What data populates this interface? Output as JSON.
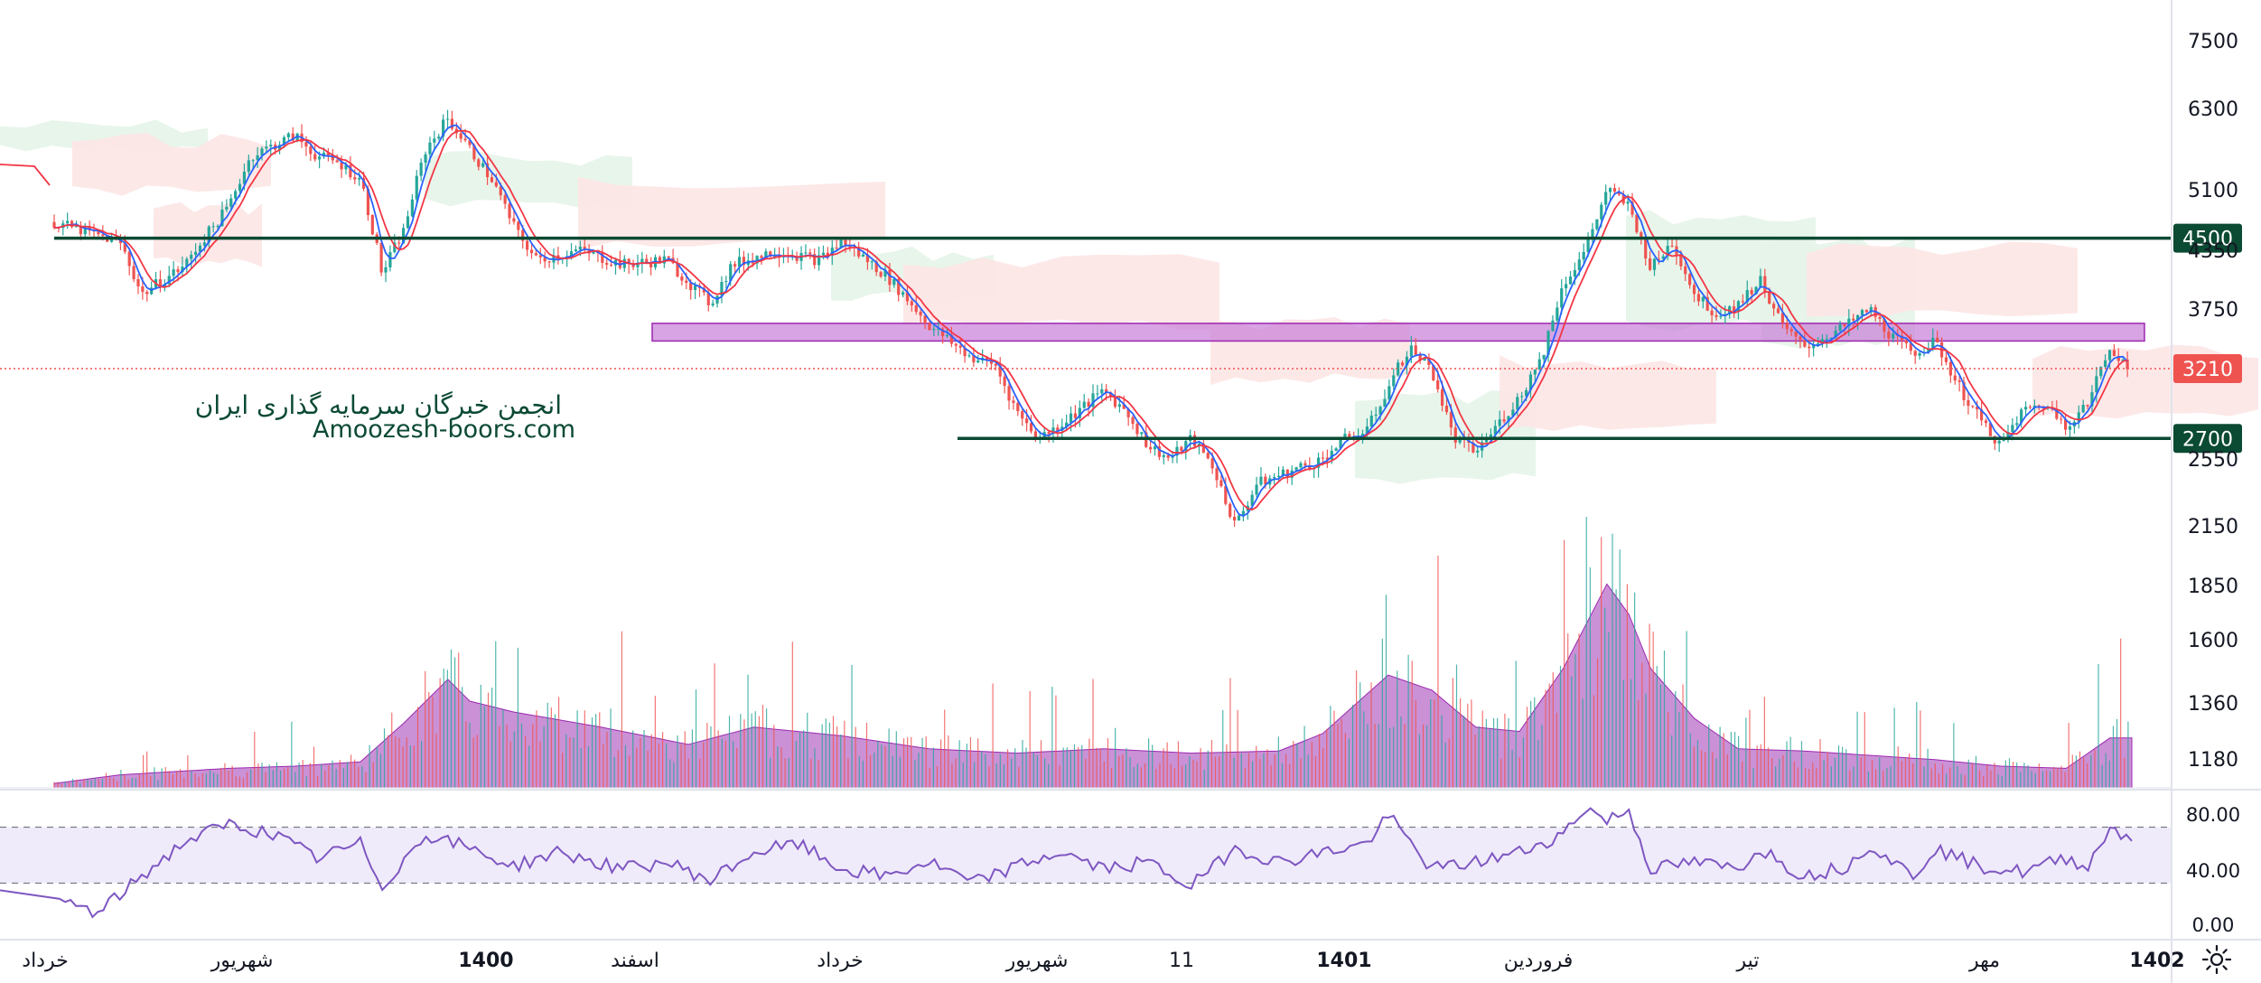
{
  "watermark": {
    "line1": "انجمن خبرگان سرمایه گذاری ایران",
    "line2": "Amoozesh-boors.com"
  },
  "colors": {
    "up": "#26a69a",
    "down": "#ef5350",
    "ma_fast": "#2962ff",
    "ma_slow": "#f23645",
    "level_line": "#0b4a33",
    "zone": "#c77dd7",
    "volume_area": "#b86cc8",
    "rsi_line": "#7e57c2",
    "rsi_band": "#f0ebfa",
    "cloud_green": "#e6f4e9",
    "cloud_red": "#fde5e5"
  },
  "chart_data": [
    {
      "type": "candlestick",
      "price_axis_ticks": [
        "7500",
        "6300",
        "5100",
        "4350",
        "3750",
        "3210",
        "2550",
        "2150",
        "1850",
        "1600",
        "1360",
        "1180"
      ],
      "x_axis_labels": [
        "خرداد",
        "شهریور",
        "1400",
        "اسفند",
        "خرداد",
        "شهریور",
        "11",
        "1401",
        "فروردین",
        "تیر",
        "مهر",
        "1402"
      ],
      "last_price": 3210,
      "last_price_label": "3210",
      "horizontal_levels": [
        {
          "value": 4500,
          "label": "4500"
        },
        {
          "value": 2700,
          "label": "2700"
        }
      ],
      "resistance_zone": [
        3460,
        3620
      ],
      "price_path": [
        [
          0,
          4700
        ],
        [
          3,
          4450
        ],
        [
          4,
          3900
        ],
        [
          6,
          4200
        ],
        [
          8,
          4900
        ],
        [
          9,
          5600
        ],
        [
          11,
          5900
        ],
        [
          12,
          5600
        ],
        [
          13,
          5500
        ],
        [
          14,
          5250
        ],
        [
          15,
          4100
        ],
        [
          16,
          4600
        ],
        [
          17,
          5700
        ],
        [
          18,
          6150
        ],
        [
          19,
          5700
        ],
        [
          20,
          5250
        ],
        [
          21,
          4650
        ],
        [
          22,
          4250
        ],
        [
          24,
          4350
        ],
        [
          26,
          4200
        ],
        [
          28,
          4250
        ],
        [
          30,
          3800
        ],
        [
          31,
          4200
        ],
        [
          33,
          4350
        ],
        [
          35,
          4250
        ],
        [
          36,
          4450
        ],
        [
          38,
          4100
        ],
        [
          40,
          3600
        ],
        [
          42,
          3300
        ],
        [
          43,
          3250
        ],
        [
          44,
          2900
        ],
        [
          45,
          2700
        ],
        [
          46,
          2800
        ],
        [
          48,
          3050
        ],
        [
          49,
          2900
        ],
        [
          50,
          2650
        ],
        [
          51,
          2550
        ],
        [
          52,
          2700
        ],
        [
          53,
          2500
        ],
        [
          54,
          2150
        ],
        [
          55,
          2400
        ],
        [
          56,
          2450
        ],
        [
          58,
          2550
        ],
        [
          59,
          2700
        ],
        [
          60,
          2750
        ],
        [
          62,
          3400
        ],
        [
          63,
          3200
        ],
        [
          64,
          2700
        ],
        [
          65,
          2600
        ],
        [
          66,
          2800
        ],
        [
          67,
          3000
        ],
        [
          68,
          3300
        ],
        [
          69,
          4000
        ],
        [
          70,
          4350
        ],
        [
          71,
          5100
        ],
        [
          72,
          4900
        ],
        [
          73,
          4150
        ],
        [
          74,
          4450
        ],
        [
          75,
          3900
        ],
        [
          76,
          3700
        ],
        [
          77,
          3800
        ],
        [
          78,
          4050
        ],
        [
          79,
          3600
        ],
        [
          80,
          3400
        ],
        [
          82,
          3600
        ],
        [
          83,
          3750
        ],
        [
          84,
          3500
        ],
        [
          85,
          3350
        ],
        [
          86,
          3450
        ],
        [
          87,
          3100
        ],
        [
          88,
          2850
        ],
        [
          89,
          2650
        ],
        [
          90,
          2900
        ],
        [
          91,
          2950
        ],
        [
          92,
          2800
        ],
        [
          93,
          2950
        ],
        [
          94,
          3400
        ],
        [
          95,
          3210
        ]
      ],
      "volume_profile": [
        [
          0,
          0.02
        ],
        [
          3,
          0.06
        ],
        [
          8,
          0.09
        ],
        [
          11,
          0.1
        ],
        [
          14,
          0.12
        ],
        [
          16,
          0.3
        ],
        [
          18,
          0.5
        ],
        [
          19,
          0.4
        ],
        [
          21,
          0.35
        ],
        [
          25,
          0.28
        ],
        [
          29,
          0.2
        ],
        [
          32,
          0.28
        ],
        [
          36,
          0.24
        ],
        [
          40,
          0.18
        ],
        [
          44,
          0.16
        ],
        [
          48,
          0.18
        ],
        [
          52,
          0.16
        ],
        [
          56,
          0.17
        ],
        [
          58,
          0.25
        ],
        [
          61,
          0.52
        ],
        [
          63,
          0.45
        ],
        [
          65,
          0.28
        ],
        [
          67,
          0.26
        ],
        [
          69,
          0.55
        ],
        [
          71,
          0.94
        ],
        [
          72,
          0.8
        ],
        [
          73,
          0.55
        ],
        [
          75,
          0.32
        ],
        [
          77,
          0.18
        ],
        [
          80,
          0.17
        ],
        [
          83,
          0.15
        ],
        [
          86,
          0.13
        ],
        [
          89,
          0.1
        ],
        [
          92,
          0.09
        ],
        [
          94,
          0.23
        ]
      ],
      "rsi": {
        "ticks": [
          "80.00",
          "40.00",
          "0.00"
        ],
        "upper_band": 70,
        "lower_band": 30,
        "path": [
          [
            0,
            20
          ],
          [
            2,
            8
          ],
          [
            4,
            35
          ],
          [
            6,
            60
          ],
          [
            8,
            72
          ],
          [
            10,
            65
          ],
          [
            12,
            48
          ],
          [
            14,
            58
          ],
          [
            15,
            28
          ],
          [
            17,
            65
          ],
          [
            19,
            55
          ],
          [
            21,
            42
          ],
          [
            23,
            52
          ],
          [
            26,
            40
          ],
          [
            28,
            45
          ],
          [
            30,
            32
          ],
          [
            32,
            52
          ],
          [
            34,
            58
          ],
          [
            36,
            40
          ],
          [
            38,
            35
          ],
          [
            40,
            45
          ],
          [
            42,
            30
          ],
          [
            44,
            42
          ],
          [
            46,
            52
          ],
          [
            48,
            40
          ],
          [
            50,
            45
          ],
          [
            52,
            28
          ],
          [
            54,
            55
          ],
          [
            56,
            45
          ],
          [
            58,
            52
          ],
          [
            60,
            58
          ],
          [
            61,
            78
          ],
          [
            63,
            40
          ],
          [
            65,
            45
          ],
          [
            67,
            52
          ],
          [
            69,
            65
          ],
          [
            70,
            84
          ],
          [
            71,
            75
          ],
          [
            72,
            82
          ],
          [
            73,
            40
          ],
          [
            75,
            45
          ],
          [
            77,
            40
          ],
          [
            78,
            55
          ],
          [
            80,
            35
          ],
          [
            82,
            42
          ],
          [
            83,
            58
          ],
          [
            85,
            35
          ],
          [
            86,
            55
          ],
          [
            88,
            42
          ],
          [
            90,
            38
          ],
          [
            92,
            48
          ],
          [
            93,
            42
          ],
          [
            94,
            70
          ],
          [
            95,
            62
          ]
        ]
      }
    }
  ]
}
